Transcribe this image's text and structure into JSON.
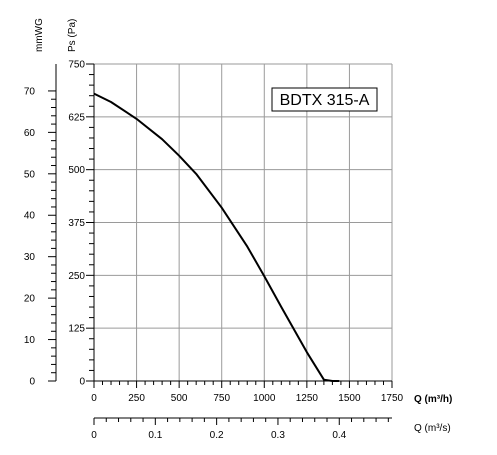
{
  "chart_data": {
    "type": "line",
    "model_label": "BDTX 315-A",
    "y_left_unit": "mmWG",
    "y_right_unit": "Ps (Pa)",
    "x_primary_unit": "Q (m³/h)",
    "x_secondary_unit": "Q (m³/s)",
    "x_primary": {
      "range": [
        0,
        1750
      ],
      "tick_labels": [
        "0",
        "250",
        "500",
        "750",
        "1000",
        "1250",
        "1500",
        "1750"
      ],
      "tick_values": [
        0,
        250,
        500,
        750,
        1000,
        1250,
        1500,
        1750
      ],
      "minor_step": 50
    },
    "x_secondary": {
      "range": [
        0,
        0.486
      ],
      "tick_labels": [
        "0",
        "0.1",
        "0.2",
        "0.3",
        "0.4"
      ],
      "tick_values": [
        0,
        0.1,
        0.2,
        0.3,
        0.4
      ],
      "minor_step": 0.02
    },
    "y_left": {
      "range": [
        0,
        76.5
      ],
      "tick_labels": [
        "0",
        "10",
        "20",
        "30",
        "40",
        "50",
        "60",
        "70"
      ],
      "tick_values": [
        0,
        10,
        20,
        30,
        40,
        50,
        60,
        70
      ],
      "minor_step": 2
    },
    "y_right": {
      "range": [
        0,
        750
      ],
      "tick_labels": [
        "0",
        "125",
        "250",
        "375",
        "500",
        "625",
        "750"
      ],
      "tick_values": [
        0,
        125,
        250,
        375,
        500,
        625,
        750
      ],
      "minor_step": 25
    },
    "grid": true,
    "series": [
      {
        "values_x": [
          0,
          100,
          250,
          400,
          500,
          600,
          750,
          900,
          1000,
          1100,
          1250,
          1350,
          1400,
          1440
        ],
        "values_y": [
          680,
          660,
          620,
          572,
          533,
          490,
          410,
          318,
          248,
          175,
          68,
          3,
          0,
          0
        ]
      }
    ],
    "colors": {
      "line": "#000000",
      "grid": "#9a9a9a",
      "axis": "#000000"
    }
  }
}
